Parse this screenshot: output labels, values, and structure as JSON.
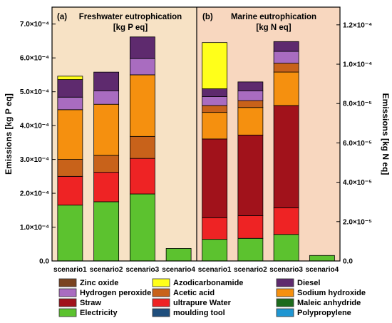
{
  "chart_data": [
    {
      "type": "bar",
      "stacked": true,
      "panel_label": "(a)",
      "title": "Freshwater eutrophication",
      "unit": "[kg P eq]",
      "ylabel": "Emissions [kg P eq]",
      "ylim": [
        0,
        0.00075
      ],
      "ytick_labels": [
        "0.0",
        "1.0×10⁻⁴",
        "2.0×10⁻⁴",
        "3.0×10⁻⁴",
        "4.0×10⁻⁴",
        "5.0×10⁻⁴",
        "6.0×10⁻⁴",
        "7.0×10⁻⁴"
      ],
      "ytick_values": [
        0,
        0.0001,
        0.0002,
        0.0003,
        0.0004,
        0.0005,
        0.0006,
        0.0007
      ],
      "background": "#f7e2c5",
      "categories": [
        "scenario1",
        "scenario2",
        "scenario3",
        "scenario4"
      ],
      "series": [
        {
          "name": "Electricity",
          "values": [
            0.000165,
            0.000175,
            0.000198,
            3.7e-05
          ]
        },
        {
          "name": "ultrapure Water",
          "values": [
            8.5e-05,
            8.7e-05,
            0.000105,
            0
          ]
        },
        {
          "name": "Acetic acid",
          "values": [
            5e-05,
            5e-05,
            6.5e-05,
            0
          ]
        },
        {
          "name": "Sodium hydroxide",
          "values": [
            0.000147,
            0.000151,
            0.000182,
            0
          ]
        },
        {
          "name": "Hydrogen peroxide",
          "values": [
            3.7e-05,
            4e-05,
            4.8e-05,
            0
          ]
        },
        {
          "name": "Diesel",
          "values": [
            5.2e-05,
            5.5e-05,
            6.4e-05,
            0
          ]
        },
        {
          "name": "Azodicarbonamide",
          "values": [
            1e-05,
            0,
            0,
            0
          ]
        }
      ]
    },
    {
      "type": "bar",
      "stacked": true,
      "panel_label": "(b)",
      "title": "Marine eutrophication",
      "unit": "[kg N eq]",
      "ylabel": "Emissions [kg N eq]",
      "ylim": [
        0,
        0.000129
      ],
      "ytick_labels": [
        "0.0",
        "2.0×10⁻⁵",
        "4.0×10⁻⁵",
        "6.0×10⁻⁵",
        "8.0×10⁻⁵",
        "1.0×10⁻⁴",
        "1.2×10⁻⁴"
      ],
      "ytick_values": [
        0,
        2e-05,
        4e-05,
        6e-05,
        8e-05,
        0.0001,
        0.00012
      ],
      "background": "#f8d7bf",
      "categories": [
        "scenario1",
        "scenario2",
        "scenario3",
        "scenario4"
      ],
      "series": [
        {
          "name": "Electricity",
          "values": [
            1.1e-05,
            1.15e-05,
            1.35e-05,
            2.8e-06
          ]
        },
        {
          "name": "ultrapure Water",
          "values": [
            1.1e-05,
            1.15e-05,
            1.35e-05,
            0
          ]
        },
        {
          "name": "Straw",
          "values": [
            4e-05,
            4.1e-05,
            5.2e-05,
            0
          ]
        },
        {
          "name": "Sodium hydroxide",
          "values": [
            1.35e-05,
            1.4e-05,
            1.7e-05,
            0
          ]
        },
        {
          "name": "Acetic acid",
          "values": [
            3.5e-06,
            3.5e-06,
            4.5e-06,
            0
          ]
        },
        {
          "name": "Hydrogen peroxide",
          "values": [
            4.5e-06,
            5e-06,
            6e-06,
            0
          ]
        },
        {
          "name": "Diesel",
          "values": [
            4e-06,
            4.5e-06,
            5e-06,
            0
          ]
        },
        {
          "name": "Azodicarbonamide",
          "values": [
            2.35e-05,
            0,
            0,
            0
          ]
        }
      ]
    }
  ],
  "legend": [
    {
      "name": "Zinc oxide",
      "color": "#7a4420"
    },
    {
      "name": "Azodicarbonamide",
      "color": "#ffff1a"
    },
    {
      "name": "Diesel",
      "color": "#5e2a6e"
    },
    {
      "name": "Hydrogen peroxide",
      "color": "#a96cc0"
    },
    {
      "name": "Acetic acid",
      "color": "#c8621a"
    },
    {
      "name": "Sodium hydroxide",
      "color": "#f5900f"
    },
    {
      "name": "Straw",
      "color": "#a1121b"
    },
    {
      "name": "ultrapure Water",
      "color": "#ee2324"
    },
    {
      "name": "Maleic anhydride",
      "color": "#1d6b1d"
    },
    {
      "name": "Electricity",
      "color": "#5cc22f"
    },
    {
      "name": "moulding tool",
      "color": "#1f4e7c"
    },
    {
      "name": "Polypropylene",
      "color": "#1f96d2"
    }
  ],
  "colors": {
    "Zinc oxide": "#7a4420",
    "Azodicarbonamide": "#ffff1a",
    "Diesel": "#5e2a6e",
    "Hydrogen peroxide": "#a96cc0",
    "Acetic acid": "#c8621a",
    "Sodium hydroxide": "#f5900f",
    "Straw": "#a1121b",
    "ultrapure Water": "#ee2324",
    "Maleic anhydride": "#1d6b1d",
    "Electricity": "#5cc22f",
    "moulding tool": "#1f4e7c",
    "Polypropylene": "#1f96d2"
  }
}
